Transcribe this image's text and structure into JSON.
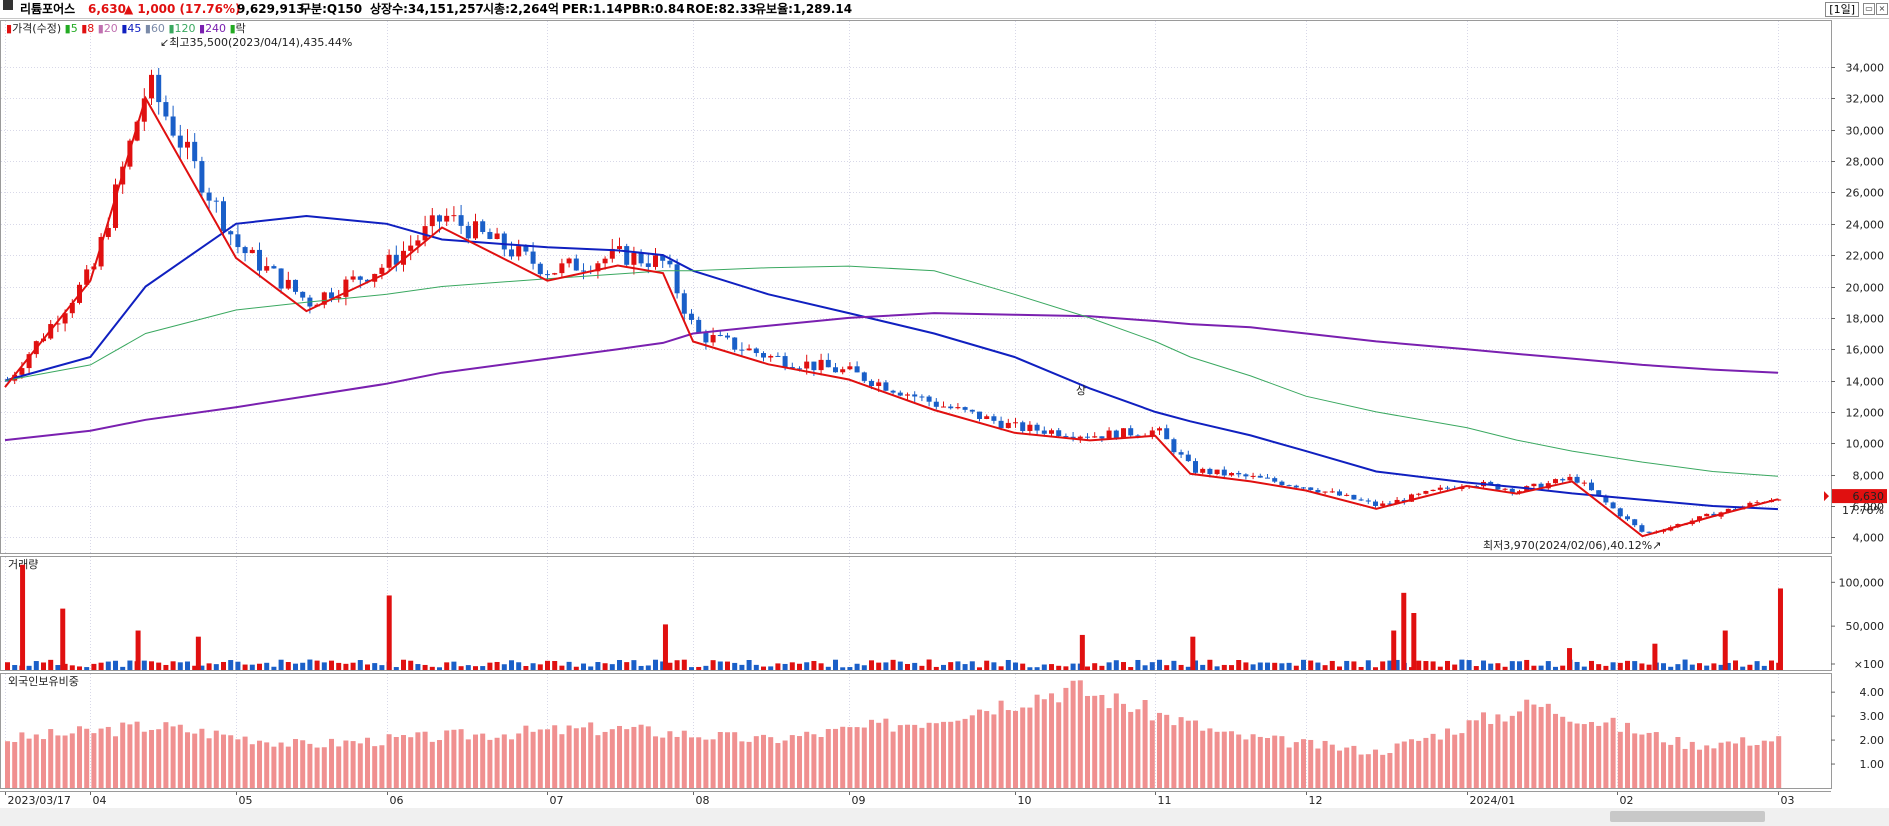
{
  "header": {
    "stock_name": "리튬포어스",
    "price": "6,630",
    "change": "▲ 1,000 (17.76%)",
    "volume": "9,629,913",
    "category": "구분:Q150",
    "shares": "상장수:34,151,257",
    "market_cap": "시총:2,264억",
    "per": "PER:1.14",
    "pbr": "PBR:0.84",
    "roe": "ROE:82.33",
    "float_rate": "유보율:1,289.14",
    "period": "[1일]"
  },
  "legend": {
    "price_label": "가격(수정)",
    "ma": [
      "5",
      "8",
      "20",
      "45",
      "60",
      "120",
      "240"
    ],
    "extra": "락"
  },
  "annotations": {
    "high": "최고35,500(2023/04/14),435.44%",
    "low": "최저3,970(2024/02/06),40.12%",
    "upper_limit": "상",
    "last_price": "6,630",
    "last_pct": "17.76%"
  },
  "panels": {
    "volume_label": "거래량",
    "foreign_label": "외국인보유비중"
  },
  "colors": {
    "up": "#e01010",
    "down": "#1a5fc8",
    "ma5": "#22aa22",
    "ma8": "#e01010",
    "ma20": "#c070b0",
    "ma45": "#1020c0",
    "ma60": "#7a8aa8",
    "ma120": "#3aa860",
    "ma240": "#7a20b0",
    "foreign_bar": "#f09090"
  },
  "chart_data": [
    {
      "type": "line",
      "title": "가격(수정)",
      "y_axis_ticks": [
        4000,
        6000,
        8000,
        10000,
        12000,
        14000,
        16000,
        18000,
        20000,
        22000,
        24000,
        26000,
        28000,
        30000,
        32000,
        34000
      ],
      "y_axis_labels": [
        "4,000",
        "6,000",
        "8,000",
        "10,000",
        "12,000",
        "14,000",
        "16,000",
        "18,000",
        "20,000",
        "22,000",
        "24,000",
        "26,000",
        "28,000",
        "30,000",
        "32,000",
        "34,000"
      ],
      "ylim": [
        3000,
        37000
      ],
      "x_tick_labels": [
        "2023/03/17",
        "04",
        "05",
        "06",
        "07",
        "08",
        "09",
        "10",
        "11",
        "12",
        "2024/01",
        "02",
        "03"
      ],
      "x": [
        "2023/03/17",
        "2023/04/03",
        "2023/04/14",
        "2023/05/02",
        "2023/05/16",
        "2023/06/01",
        "2023/06/12",
        "2023/07/03",
        "2023/07/17",
        "2023/07/26",
        "2023/08/01",
        "2023/08/16",
        "2023/09/01",
        "2023/09/18",
        "2023/10/04",
        "2023/10/19",
        "2023/11/01",
        "2023/11/08",
        "2023/11/20",
        "2023/12/01",
        "2023/12/15",
        "2024/01/02",
        "2024/01/12",
        "2024/01/23",
        "2024/02/06",
        "2024/02/20",
        "2024/03/04"
      ],
      "close_approx": [
        14000,
        21000,
        33000,
        22500,
        19000,
        21500,
        24500,
        21000,
        22000,
        21500,
        17000,
        15500,
        14500,
        12500,
        11000,
        10500,
        10800,
        8300,
        7800,
        7200,
        6000,
        7500,
        7000,
        7800,
        4200,
        5500,
        6630
      ],
      "series": [
        {
          "name": "45",
          "values": [
            14000,
            15500,
            20000,
            24000,
            24500,
            24000,
            23000,
            22500,
            22300,
            22000,
            21000,
            19500,
            18300,
            17000,
            15500,
            13500,
            12000,
            11400,
            10500,
            9500,
            8200,
            7500,
            7200,
            6800,
            6400,
            6000,
            5800
          ]
        },
        {
          "name": "240",
          "values": [
            10200,
            10800,
            11500,
            12300,
            13000,
            13800,
            14500,
            15400,
            16000,
            16400,
            17000,
            17500,
            18000,
            18300,
            18200,
            18100,
            17800,
            17600,
            17400,
            17000,
            16500,
            16000,
            15700,
            15400,
            15000,
            14700,
            14500
          ]
        },
        {
          "name": "120",
          "values": [
            14000,
            15000,
            17000,
            18500,
            19000,
            19500,
            20000,
            20500,
            20800,
            21000,
            21000,
            21200,
            21300,
            21000,
            19500,
            18000,
            16500,
            15500,
            14300,
            13000,
            12000,
            11000,
            10200,
            9500,
            8800,
            8200,
            7900
          ]
        }
      ],
      "annotations": [
        "최고35,500(2023/04/14),435.44%",
        "최저3,970(2024/02/06),40.12%"
      ]
    },
    {
      "type": "bar",
      "title": "거래량",
      "y_axis_labels": [
        "100,000",
        "50,000",
        "×100"
      ],
      "y_axis_ticks": [
        100000,
        50000,
        0
      ],
      "ylim": [
        0,
        130000
      ],
      "x": [
        "2023/03/20",
        "2023/03/28",
        "2023/04/12",
        "2023/04/24",
        "2023/06/01",
        "2023/07/26",
        "2023/10/17",
        "2023/11/08",
        "2023/12/18",
        "2023/12/20",
        "2023/12/22",
        "2024/01/22",
        "2024/02/08",
        "2024/02/22",
        "2024/03/04"
      ],
      "values": [
        120000,
        70000,
        45000,
        38000,
        85000,
        52000,
        40000,
        38000,
        45000,
        88000,
        65000,
        25000,
        30000,
        45000,
        93000
      ]
    },
    {
      "type": "bar",
      "title": "외국인보유비중",
      "y_axis_labels": [
        "1.00",
        "2.00",
        "3.00",
        "4.00"
      ],
      "y_axis_ticks": [
        1,
        2,
        3,
        4
      ],
      "ylim": [
        0,
        4.8
      ],
      "x": [
        "2023/03",
        "2023/04",
        "2023/05",
        "2023/06",
        "2023/07",
        "2023/08",
        "2023/09",
        "2023/10",
        "2023/11",
        "2023/12",
        "2024/01",
        "2024/02",
        "2024/03"
      ],
      "values": [
        2.0,
        2.6,
        1.8,
        2.2,
        2.5,
        2.0,
        2.8,
        4.2,
        2.2,
        1.5,
        3.5,
        1.8,
        2.2
      ]
    }
  ]
}
